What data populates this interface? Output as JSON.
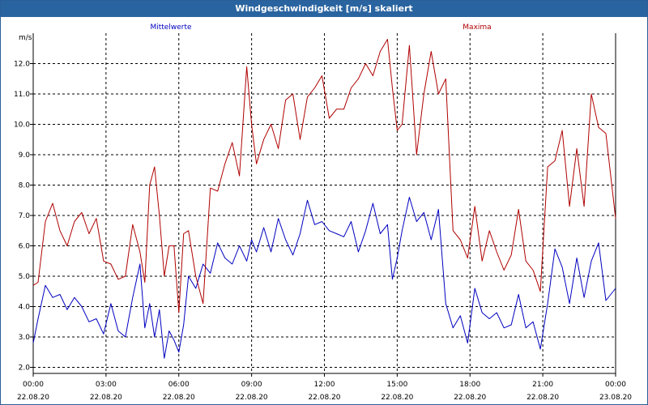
{
  "window": {
    "title": "Windgeschwindigkeit [m/s] skaliert"
  },
  "colors": {
    "titlebar": "#2a64a0",
    "mean_series": "#0000c0",
    "max_series": "#b00000",
    "grid": "#000000"
  },
  "chart_data": {
    "type": "line",
    "title": "Windgeschwindigkeit [m/s] skaliert",
    "ylabel": "m/s",
    "xlabel": "",
    "ylim": [
      1.8,
      13.0
    ],
    "xlim": [
      0,
      24
    ],
    "grid": true,
    "legend": "top",
    "y_ticks": [
      "2.0",
      "3.0",
      "4.0",
      "5.0",
      "6.0",
      "7.0",
      "8.0",
      "9.0",
      "10.0",
      "11.0",
      "12.0"
    ],
    "x_ticks": [
      {
        "time": "00:00",
        "date": "22.08.20"
      },
      {
        "time": "03:00",
        "date": "22.08.20"
      },
      {
        "time": "06:00",
        "date": "22.08.20"
      },
      {
        "time": "09:00",
        "date": "22.08.20"
      },
      {
        "time": "12:00",
        "date": "22.08.20"
      },
      {
        "time": "15:00",
        "date": "22.08.20"
      },
      {
        "time": "18:00",
        "date": "22.08.20"
      },
      {
        "time": "21:00",
        "date": "22.08.20"
      },
      {
        "time": "00:00",
        "date": "23.08.20"
      }
    ],
    "series": [
      {
        "name": "Mittelwerte",
        "x": [
          0.0,
          0.2,
          0.5,
          0.8,
          1.1,
          1.4,
          1.7,
          2.0,
          2.3,
          2.6,
          2.9,
          3.2,
          3.5,
          3.8,
          4.1,
          4.4,
          4.6,
          4.8,
          5.0,
          5.2,
          5.4,
          5.6,
          5.8,
          6.0,
          6.2,
          6.4,
          6.7,
          7.0,
          7.3,
          7.6,
          7.9,
          8.2,
          8.5,
          8.8,
          9.0,
          9.2,
          9.5,
          9.8,
          10.1,
          10.4,
          10.7,
          11.0,
          11.3,
          11.6,
          11.9,
          12.2,
          12.5,
          12.8,
          13.1,
          13.4,
          13.7,
          14.0,
          14.3,
          14.6,
          14.8,
          15.0,
          15.2,
          15.5,
          15.8,
          16.1,
          16.4,
          16.7,
          17.0,
          17.3,
          17.6,
          17.9,
          18.2,
          18.5,
          18.8,
          19.1,
          19.4,
          19.7,
          20.0,
          20.3,
          20.6,
          20.9,
          21.2,
          21.5,
          21.8,
          22.1,
          22.4,
          22.7,
          23.0,
          23.3,
          23.6,
          24.0
        ],
        "values": [
          2.8,
          3.6,
          4.7,
          4.3,
          4.4,
          3.9,
          4.3,
          4.0,
          3.5,
          3.6,
          3.1,
          4.1,
          3.2,
          3.0,
          4.3,
          5.4,
          3.3,
          4.1,
          3.0,
          3.9,
          2.3,
          3.2,
          2.9,
          2.5,
          3.4,
          5.0,
          4.6,
          5.4,
          5.1,
          6.1,
          5.6,
          5.4,
          6.0,
          5.5,
          6.2,
          5.8,
          6.6,
          5.8,
          6.9,
          6.2,
          5.7,
          6.4,
          7.5,
          6.7,
          6.8,
          6.5,
          6.4,
          6.3,
          6.8,
          5.8,
          6.5,
          7.4,
          6.4,
          6.7,
          4.9,
          5.6,
          6.5,
          7.6,
          6.8,
          7.1,
          6.2,
          7.2,
          4.1,
          3.3,
          3.7,
          2.8,
          4.6,
          3.8,
          3.6,
          3.8,
          3.3,
          3.4,
          4.4,
          3.3,
          3.5,
          2.6,
          4.1,
          5.9,
          5.3,
          4.1,
          5.6,
          4.3,
          5.5,
          6.1,
          4.2,
          4.6
        ]
      },
      {
        "name": "Maxima",
        "x": [
          0.0,
          0.2,
          0.5,
          0.8,
          1.1,
          1.4,
          1.7,
          2.0,
          2.3,
          2.6,
          2.9,
          3.2,
          3.5,
          3.8,
          4.1,
          4.4,
          4.6,
          4.8,
          5.0,
          5.2,
          5.4,
          5.6,
          5.8,
          6.0,
          6.2,
          6.4,
          6.7,
          7.0,
          7.3,
          7.6,
          7.9,
          8.2,
          8.5,
          8.8,
          9.0,
          9.2,
          9.5,
          9.8,
          10.1,
          10.4,
          10.7,
          11.0,
          11.3,
          11.6,
          11.9,
          12.2,
          12.5,
          12.8,
          13.1,
          13.4,
          13.7,
          14.0,
          14.3,
          14.6,
          14.8,
          15.0,
          15.2,
          15.5,
          15.8,
          16.1,
          16.4,
          16.7,
          17.0,
          17.3,
          17.6,
          17.9,
          18.2,
          18.5,
          18.8,
          19.1,
          19.4,
          19.7,
          20.0,
          20.3,
          20.6,
          20.9,
          21.2,
          21.5,
          21.8,
          22.1,
          22.4,
          22.7,
          23.0,
          23.3,
          23.6,
          24.0
        ],
        "values": [
          4.7,
          4.8,
          6.8,
          7.4,
          6.5,
          6.0,
          6.8,
          7.1,
          6.4,
          6.9,
          5.5,
          5.4,
          4.9,
          5.0,
          6.7,
          5.8,
          4.8,
          8.0,
          8.6,
          7.0,
          5.0,
          6.0,
          6.0,
          3.8,
          6.4,
          6.5,
          5.0,
          4.1,
          7.9,
          7.8,
          8.7,
          9.4,
          8.3,
          11.9,
          10.0,
          8.7,
          9.5,
          10.0,
          9.2,
          10.8,
          11.0,
          9.5,
          10.9,
          11.2,
          11.6,
          10.2,
          10.5,
          10.5,
          11.2,
          11.5,
          12.0,
          11.6,
          12.4,
          12.8,
          11.2,
          9.8,
          10.0,
          12.6,
          9.0,
          11.0,
          12.4,
          11.0,
          11.5,
          6.5,
          6.2,
          5.6,
          7.3,
          5.5,
          6.5,
          5.8,
          5.2,
          5.7,
          7.2,
          5.5,
          5.2,
          4.5,
          8.6,
          8.8,
          9.8,
          7.3,
          9.2,
          7.3,
          11.0,
          9.9,
          9.7,
          6.9
        ]
      }
    ]
  }
}
